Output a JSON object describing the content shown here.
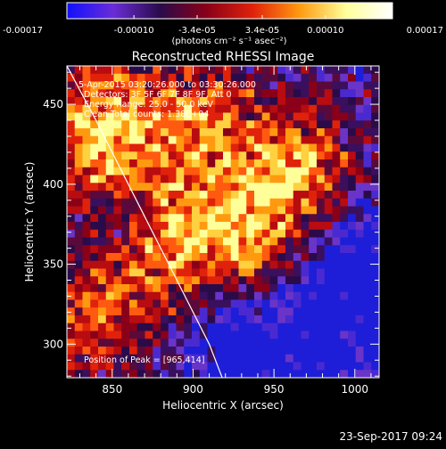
{
  "colorbar": {
    "tick_labels": [
      "-0.00017",
      "-0.00010",
      "-3.4e-05",
      "3.4e-05",
      "0.00010",
      "0.00017"
    ],
    "tick_values": [
      -0.00017,
      -0.0001,
      -3.4e-05,
      3.4e-05,
      0.0001,
      0.00017
    ],
    "range": [
      -0.00017,
      0.00017
    ],
    "unit_label": "(photons cm⁻² s⁻¹ asec⁻²)",
    "colors": [
      "#1010ff",
      "#6a2cd6",
      "#2a0b4a",
      "#8a0018",
      "#e0220b",
      "#ff9a10",
      "#ffff9a",
      "#ffffff"
    ]
  },
  "chart_data": {
    "type": "heatmap",
    "title": "Reconstructed RHESSI Image",
    "xlabel": "Heliocentric X (arcsec)",
    "ylabel": "Heliocentric Y (arcsec)",
    "xlim": [
      822,
      1015
    ],
    "ylim": [
      279,
      474
    ],
    "x_ticks": [
      850,
      900,
      950,
      1000
    ],
    "y_ticks": [
      300,
      350,
      400,
      450
    ],
    "x_tick_labels": [
      "850",
      "900",
      "950",
      "1000"
    ],
    "y_tick_labels": [
      "300",
      "350",
      "400",
      "450"
    ],
    "limb_curve": [
      [
        822,
        474
      ],
      [
        840,
        440
      ],
      [
        870,
        380
      ],
      [
        895,
        330
      ],
      [
        910,
        300
      ],
      [
        918,
        279
      ]
    ],
    "peak": [
      965,
      414
    ],
    "annotations": {
      "time": "5-Apr-2015 03:20:26.000 to 03:30:26.000",
      "detectors": "Detectors: 3F 5F 6F 7F 8F 9F, Att 0",
      "energy": "Energy Range: 25.0 - 50.0 keV",
      "clean": "Clean   Total counts: 1.38E+04",
      "peak": "Position of Peak = [965,414]"
    }
  },
  "footer": {
    "timestamp": "23-Sep-2017 09:24"
  }
}
